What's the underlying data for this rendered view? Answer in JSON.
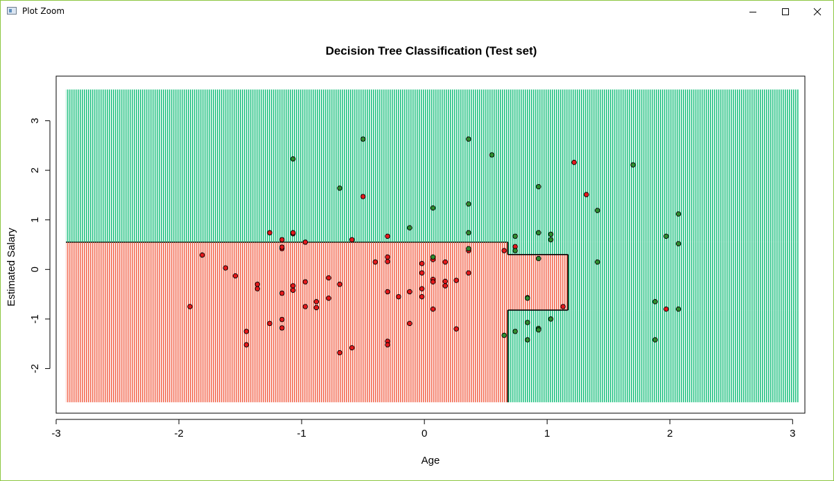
{
  "window": {
    "title": "Plot Zoom",
    "icon": "plot-window-icon",
    "controls": {
      "minimize_icon": "minimize-icon",
      "maximize_icon": "maximize-icon",
      "close_icon": "close-icon"
    }
  },
  "colors": {
    "class0_region": "#f2684f",
    "class1_region": "#1fc080",
    "class0_point": "#e3191c",
    "class1_point": "#2f8d2f",
    "boundary": "#000000"
  },
  "chart_data": {
    "type": "scatter",
    "title": "Decision Tree Classification (Test set)",
    "xlabel": "Age",
    "ylabel": "Estimated Salary",
    "xlim": [
      -3.0,
      3.1
    ],
    "ylim": [
      -2.9,
      3.9
    ],
    "x_ticks": [
      -3,
      -2,
      -1,
      0,
      1,
      2,
      3
    ],
    "y_ticks": [
      -2,
      -1,
      0,
      1,
      2,
      3
    ],
    "x_tick_labels": [
      "-3",
      "-2",
      "-1",
      "0",
      "1",
      "2",
      "3"
    ],
    "y_tick_labels": [
      "-2",
      "-1",
      "0",
      "1",
      "2",
      "3"
    ],
    "grid": false,
    "legend": "none",
    "background_grid": {
      "x_range": [
        -2.92,
        3.05
      ],
      "y_range": [
        -2.68,
        3.63
      ]
    },
    "decision_regions": [
      {
        "label": 0,
        "x": [
          -2.92,
          0.68
        ],
        "y": [
          -2.68,
          0.55
        ]
      },
      {
        "label": 0,
        "x": [
          0.68,
          1.17
        ],
        "y": [
          -0.82,
          0.3
        ]
      },
      {
        "label": 1,
        "x": [
          -2.92,
          3.05
        ],
        "y": [
          0.55,
          3.63
        ]
      },
      {
        "label": 1,
        "x": [
          0.68,
          3.05
        ],
        "y": [
          -2.68,
          -0.82
        ]
      },
      {
        "label": 1,
        "x": [
          0.68,
          1.17
        ],
        "y": [
          0.3,
          0.55
        ]
      },
      {
        "label": 1,
        "x": [
          1.17,
          3.05
        ],
        "y": [
          -0.82,
          0.55
        ]
      }
    ],
    "series": [
      {
        "label": 0,
        "color": "#e3191c",
        "points": [
          [
            -1.91,
            -0.75
          ],
          [
            -1.81,
            0.29
          ],
          [
            -1.62,
            0.03
          ],
          [
            -1.54,
            -0.13
          ],
          [
            -1.36,
            -0.3
          ],
          [
            -1.36,
            -0.39
          ],
          [
            -1.26,
            0.74
          ],
          [
            -1.26,
            -1.09
          ],
          [
            -1.45,
            -1.25
          ],
          [
            -1.45,
            -1.52
          ],
          [
            -1.16,
            -1.01
          ],
          [
            -1.16,
            -1.18
          ],
          [
            -1.16,
            -0.48
          ],
          [
            -1.16,
            0.42
          ],
          [
            -1.16,
            0.45
          ],
          [
            -1.16,
            0.6
          ],
          [
            -1.07,
            0.72
          ],
          [
            -1.07,
            0.74
          ],
          [
            -1.07,
            -0.33
          ],
          [
            -1.07,
            -0.42
          ],
          [
            -0.97,
            0.55
          ],
          [
            -0.97,
            -0.25
          ],
          [
            -0.97,
            -0.75
          ],
          [
            -0.88,
            -0.65
          ],
          [
            -0.88,
            -0.77
          ],
          [
            -0.78,
            -0.17
          ],
          [
            -0.78,
            -0.58
          ],
          [
            -0.69,
            -0.3
          ],
          [
            -0.69,
            -1.68
          ],
          [
            -0.59,
            0.6
          ],
          [
            -0.59,
            -1.58
          ],
          [
            -0.5,
            1.47
          ],
          [
            -0.4,
            0.15
          ],
          [
            -0.3,
            0.67
          ],
          [
            -0.3,
            0.25
          ],
          [
            -0.3,
            0.16
          ],
          [
            -0.3,
            -0.45
          ],
          [
            -0.3,
            -1.45
          ],
          [
            -0.3,
            -1.52
          ],
          [
            -0.21,
            -0.55
          ],
          [
            -0.12,
            -0.45
          ],
          [
            -0.12,
            -1.09
          ],
          [
            -0.02,
            0.12
          ],
          [
            -0.02,
            -0.07
          ],
          [
            -0.02,
            -0.39
          ],
          [
            -0.02,
            -0.55
          ],
          [
            0.07,
            0.2
          ],
          [
            0.07,
            -0.2
          ],
          [
            0.07,
            -0.25
          ],
          [
            0.07,
            -0.8
          ],
          [
            0.17,
            0.15
          ],
          [
            0.17,
            -0.24
          ],
          [
            0.17,
            -0.33
          ],
          [
            0.26,
            -0.22
          ],
          [
            0.26,
            -1.2
          ],
          [
            0.36,
            0.38
          ],
          [
            0.36,
            -0.07
          ],
          [
            0.65,
            0.38
          ],
          [
            0.74,
            0.46
          ],
          [
            1.13,
            -0.75
          ],
          [
            1.22,
            2.16
          ],
          [
            1.32,
            1.51
          ],
          [
            1.97,
            -0.8
          ]
        ]
      },
      {
        "label": 1,
        "color": "#2f8d2f",
        "points": [
          [
            -1.07,
            2.23
          ],
          [
            -0.69,
            1.64
          ],
          [
            -0.5,
            2.63
          ],
          [
            -0.12,
            0.84
          ],
          [
            0.07,
            1.24
          ],
          [
            0.07,
            0.25
          ],
          [
            0.36,
            2.63
          ],
          [
            0.36,
            1.32
          ],
          [
            0.36,
            0.74
          ],
          [
            0.36,
            0.42
          ],
          [
            0.55,
            2.31
          ],
          [
            0.65,
            -1.33
          ],
          [
            0.74,
            0.67
          ],
          [
            0.74,
            0.38
          ],
          [
            0.74,
            -1.25
          ],
          [
            0.84,
            -0.57
          ],
          [
            0.84,
            -0.58
          ],
          [
            0.84,
            -1.07
          ],
          [
            0.84,
            -1.42
          ],
          [
            0.93,
            1.67
          ],
          [
            0.93,
            0.74
          ],
          [
            0.93,
            0.22
          ],
          [
            0.93,
            -1.19
          ],
          [
            0.93,
            -1.22
          ],
          [
            1.03,
            0.71
          ],
          [
            1.03,
            0.6
          ],
          [
            1.03,
            -1.0
          ],
          [
            1.41,
            1.19
          ],
          [
            1.41,
            0.15
          ],
          [
            1.7,
            2.11
          ],
          [
            1.88,
            -0.65
          ],
          [
            1.88,
            -1.42
          ],
          [
            1.97,
            0.67
          ],
          [
            2.07,
            1.12
          ],
          [
            2.07,
            0.52
          ],
          [
            2.07,
            -0.8
          ]
        ]
      }
    ]
  }
}
